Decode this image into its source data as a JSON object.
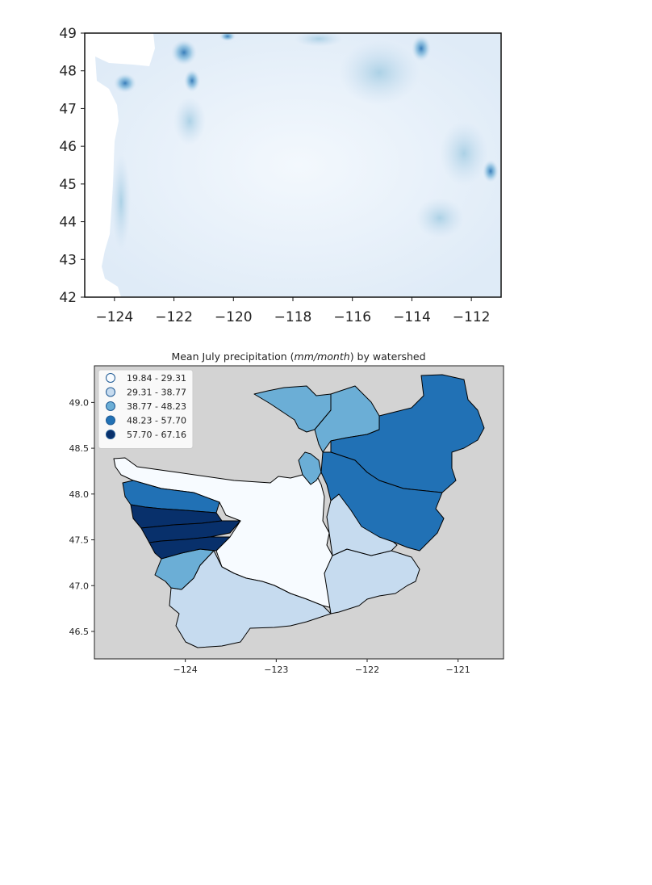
{
  "raster_map": {
    "x_ticks": [
      "−124",
      "−122",
      "−120",
      "−118",
      "−116",
      "−114",
      "−112"
    ],
    "y_ticks": [
      "49",
      "48",
      "47",
      "46",
      "45",
      "44",
      "43",
      "42"
    ],
    "xlim": [
      -125,
      -111
    ],
    "ylim": [
      42,
      49
    ],
    "colormap": "Blues"
  },
  "watershed_map": {
    "title_prefix": "Mean July precipitation (",
    "title_units": "mm/month",
    "title_suffix": ") by watershed",
    "x_ticks": [
      "−124",
      "−123",
      "−122",
      "−121"
    ],
    "y_ticks": [
      "49.0",
      "48.5",
      "48.0",
      "47.5",
      "47.0",
      "46.5"
    ],
    "xlim": [
      -125.0,
      -120.5
    ],
    "ylim": [
      46.2,
      49.4
    ],
    "background": "#d3d3d3",
    "legend": {
      "placement": "top-left",
      "entries": [
        {
          "label": "19.84 - 29.31",
          "color": "#f7fbff"
        },
        {
          "label": "29.31 - 38.77",
          "color": "#c6dbef"
        },
        {
          "label": "38.77 - 48.23",
          "color": "#6baed6"
        },
        {
          "label": "48.23 - 57.70",
          "color": "#2171b5"
        },
        {
          "label": "57.70 - 67.16",
          "color": "#08306b"
        }
      ]
    }
  }
}
